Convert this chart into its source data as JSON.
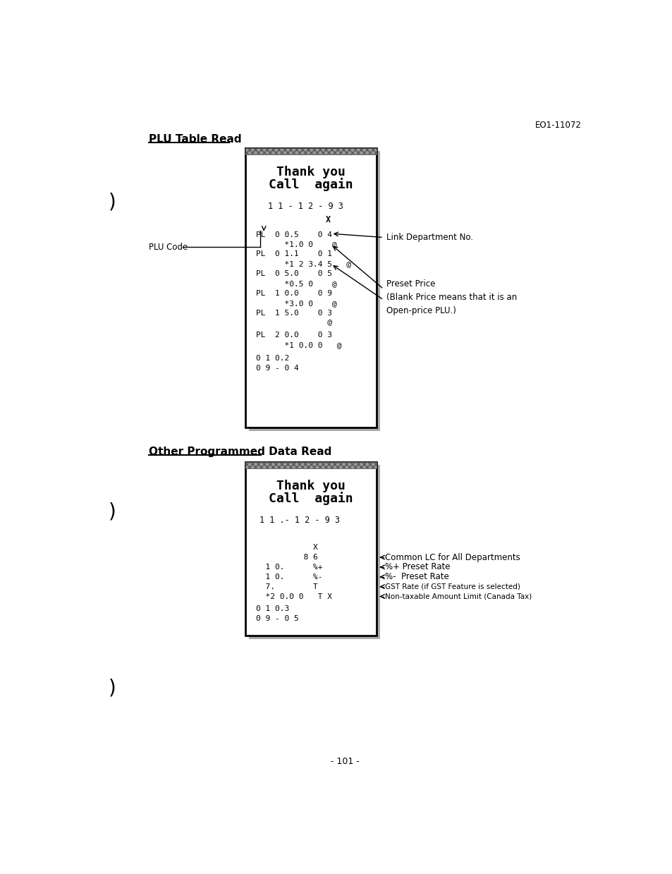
{
  "page_id": "EO1-11072",
  "page_number": "- 101 -",
  "section1_title": "PLU Table Read",
  "section2_title": "Other Programmed Data Read",
  "receipt1_header1": "Thank you",
  "receipt1_header2": "Call  again",
  "receipt1_date": "1 1 - 1 2 - 9 3",
  "receipt2_header1": "Thank you",
  "receipt2_header2": "Call  again",
  "receipt2_date": "1 1 .- 1 2 - 9 3",
  "label1_plucode": "PLU Code",
  "label1_linkdept": "Link Department No.",
  "label1_presetprice": "Preset Price\n(Blank Price means that it is an\nOpen-price PLU.)",
  "label2_commonlc": "Common LC for All Departments",
  "label2_pctplus": "%+ Preset Rate",
  "label2_pctminus": "%-  Preset Rate",
  "label2_gst": "GST Rate (if GST Feature is selected)",
  "label2_nontaxable": "Non-taxable Amount Limit (Canada Tax)",
  "bg_color": "#ffffff",
  "text_color": "#000000",
  "receipt_bg": "#ffffff",
  "receipt_border": "#000000",
  "receipt_shadow": "#aaaaaa",
  "plu_lines": [
    [
      160,
      "PL  0 0.5    0 4"
    ],
    [
      178,
      "      *1.0 0    @"
    ],
    [
      196,
      "PL  0 1.1    0 1"
    ],
    [
      214,
      "      *1 2 3.4 5   @"
    ],
    [
      232,
      "PL  0 5.0    0 5"
    ],
    [
      250,
      "      *0.5 0    @"
    ],
    [
      268,
      "PL  1 0.0    0 9"
    ],
    [
      286,
      "      *3.0 0    @"
    ],
    [
      304,
      "PL  1 5.0    0 3"
    ],
    [
      322,
      "               @"
    ],
    [
      345,
      "PL  2 0.0    0 3"
    ],
    [
      363,
      "      *1 0.0 0   @"
    ],
    [
      388,
      "0 1 0.2"
    ],
    [
      406,
      "0 9 - 0 4"
    ]
  ],
  "r2_lines": [
    [
      158,
      "            X"
    ],
    [
      176,
      "          8 6"
    ],
    [
      194,
      "  1 0.      %+"
    ],
    [
      212,
      "  1 0.      %-"
    ],
    [
      230,
      "  7.        T"
    ],
    [
      248,
      "  *2 0.0 0   T X"
    ],
    [
      271,
      "0 1 0.3"
    ],
    [
      289,
      "0 9 - 0 5"
    ]
  ]
}
